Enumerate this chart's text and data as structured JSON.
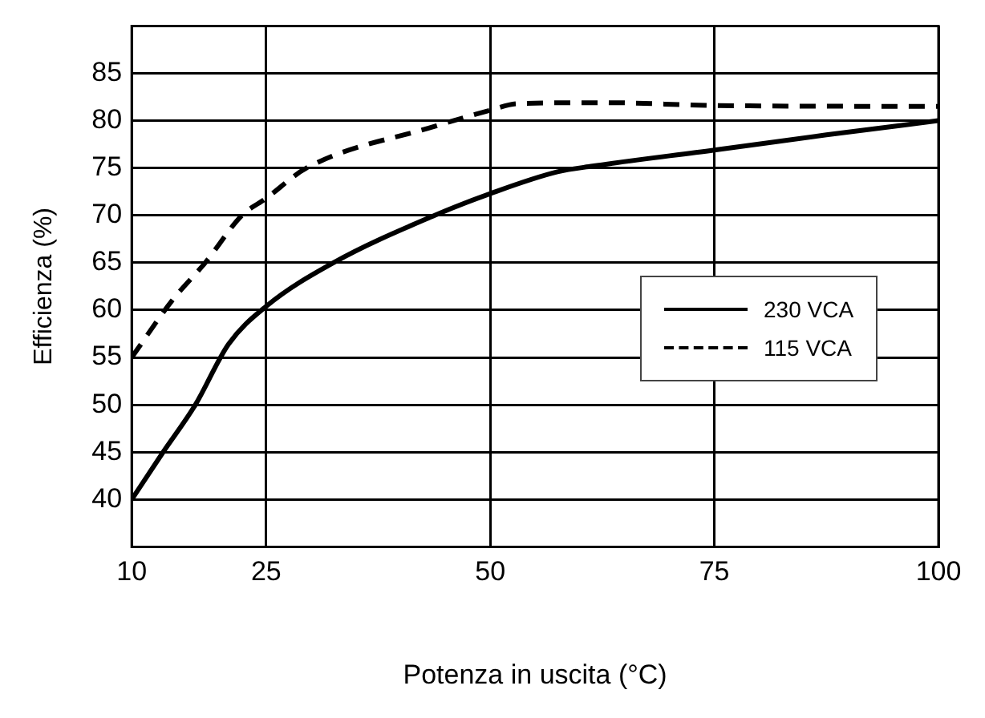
{
  "chart_data": {
    "type": "line",
    "xlabel": "Potenza in uscita (°C)",
    "ylabel": "Efficienza (%)",
    "xlim": [
      10,
      100
    ],
    "xticks": [
      10,
      25,
      50,
      75,
      100
    ],
    "ylim": [
      35,
      90
    ],
    "yticks": [
      40,
      45,
      50,
      55,
      60,
      65,
      70,
      75,
      80,
      85
    ],
    "grid": true,
    "legend": "right",
    "marker": "none",
    "series": [
      {
        "name": "230 VCA",
        "color": "#000000",
        "line_style": "solid",
        "x": [
          10,
          13.5,
          17.1,
          20.8,
          25,
          32.5,
          43.8,
          50,
          57.5,
          61.4,
          75,
          87.5,
          100
        ],
        "values": [
          40,
          45,
          50,
          56.4,
          60.4,
          65,
          70,
          72.3,
          74.6,
          75.2,
          76.9,
          78.5,
          80
        ]
      },
      {
        "name": "115 VCA",
        "color": "#000000",
        "line_style": "dashed",
        "x": [
          10,
          14.5,
          18.2,
          22.3,
          25,
          29.5,
          43.8,
          50,
          53,
          63,
          75,
          100
        ],
        "values": [
          55,
          61,
          65,
          70,
          71.8,
          75,
          79.4,
          81.1,
          81.8,
          81.9,
          81.6,
          81.5
        ]
      }
    ]
  }
}
